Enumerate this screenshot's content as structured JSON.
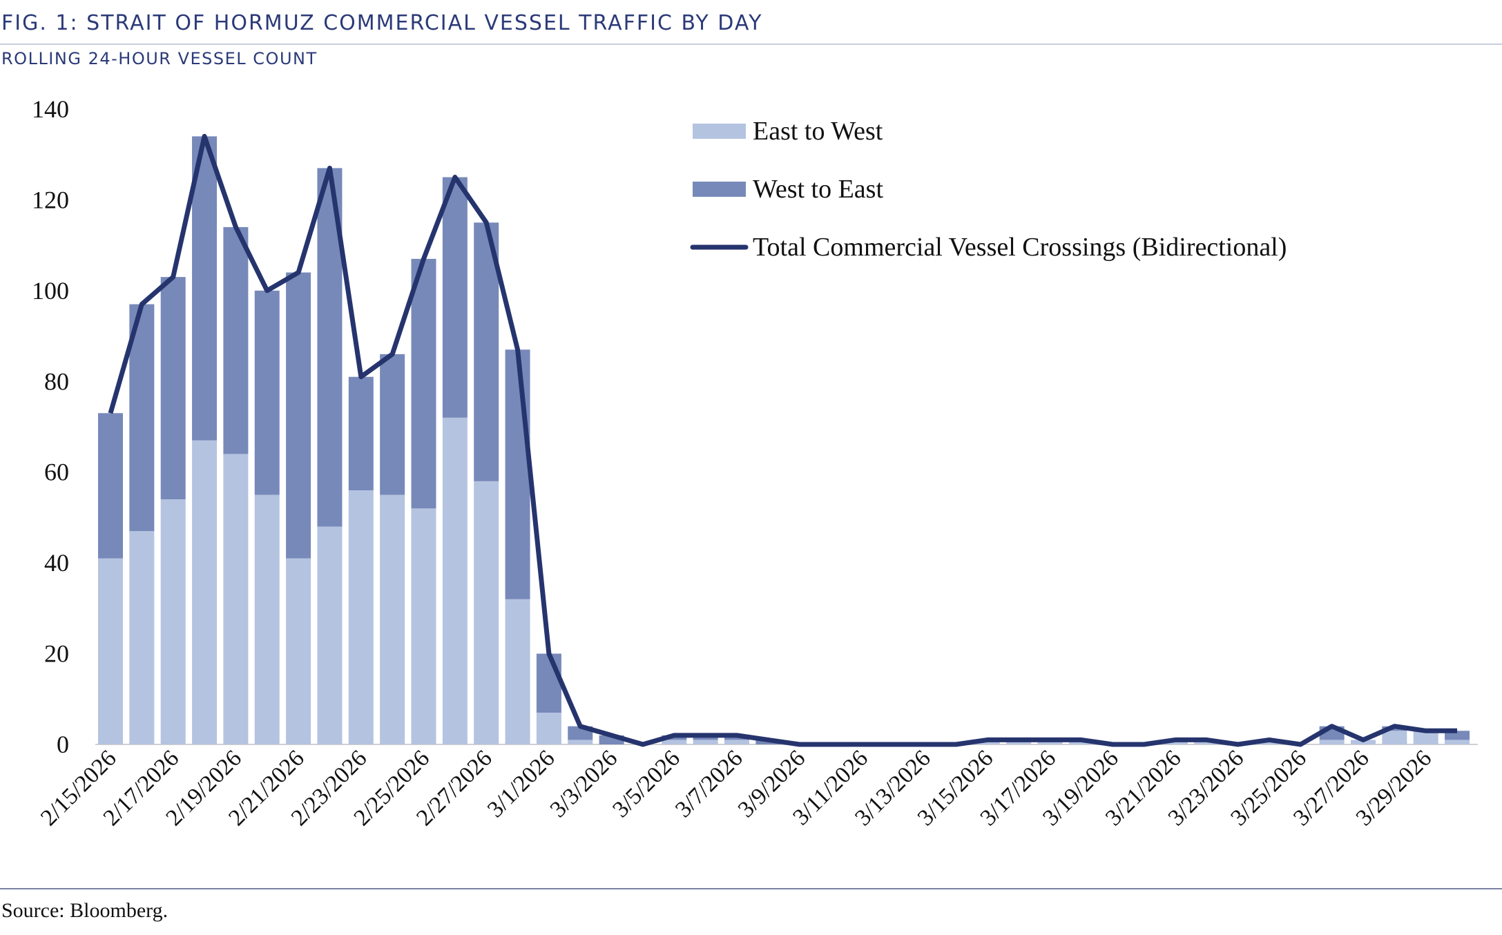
{
  "chart_data": {
    "type": "bar",
    "title": "FIG. 1: STRAIT OF HORMUZ COMMERCIAL VESSEL TRAFFIC BY DAY",
    "subtitle": "ROLLING 24-HOUR VESSEL COUNT",
    "source": "Source: Bloomberg.",
    "stacked": true,
    "categories": [
      "2/15/2026",
      null,
      "2/17/2026",
      null,
      "2/19/2026",
      null,
      "2/21/2026",
      null,
      "2/23/2026",
      null,
      "2/25/2026",
      null,
      "2/27/2026",
      null,
      "3/1/2026",
      null,
      "3/3/2026",
      null,
      "3/5/2026",
      null,
      "3/7/2026",
      null,
      "3/9/2026",
      null,
      "3/11/2026",
      null,
      "3/13/2026",
      null,
      "3/15/2026",
      null,
      "3/17/2026",
      null,
      "3/19/2026",
      null,
      "3/21/2026",
      null,
      "3/23/2026",
      null,
      "3/25/2026",
      null,
      "3/27/2026",
      null,
      "3/29/2026",
      null
    ],
    "series": [
      {
        "name": "East to West",
        "type": "bar",
        "color": "#b4c3e0",
        "values": [
          41,
          47,
          54,
          67,
          64,
          55,
          41,
          48,
          56,
          55,
          52,
          72,
          58,
          32,
          7,
          1,
          0,
          0,
          1,
          1,
          1,
          0,
          0,
          0,
          0,
          0,
          0,
          0,
          1,
          1,
          1,
          1,
          0,
          0,
          1,
          1,
          0,
          1,
          0,
          1,
          1,
          3,
          3,
          1
        ]
      },
      {
        "name": "West to East",
        "type": "bar",
        "color": "#7789b9",
        "values": [
          32,
          50,
          49,
          67,
          50,
          45,
          63,
          79,
          25,
          31,
          55,
          53,
          57,
          55,
          13,
          3,
          2,
          0,
          1,
          1,
          1,
          1,
          0,
          0,
          0,
          0,
          0,
          0,
          0,
          0,
          0,
          0,
          0,
          0,
          0,
          0,
          0,
          0,
          0,
          3,
          0,
          1,
          0,
          2
        ]
      },
      {
        "name": "Total Commercial Vessel Crossings (Bidirectional)",
        "type": "line",
        "color": "#26346e",
        "values": [
          73,
          97,
          103,
          134,
          114,
          100,
          104,
          127,
          81,
          86,
          107,
          125,
          115,
          87,
          20,
          4,
          2,
          0,
          2,
          2,
          2,
          1,
          0,
          0,
          0,
          0,
          0,
          0,
          1,
          1,
          1,
          1,
          0,
          0,
          1,
          1,
          0,
          1,
          0,
          4,
          1,
          4,
          3,
          3
        ]
      }
    ],
    "ylim": [
      0,
      140
    ],
    "yticks": [
      0,
      20,
      40,
      60,
      80,
      100,
      120,
      140
    ],
    "grid": false,
    "legend": "top-right"
  }
}
